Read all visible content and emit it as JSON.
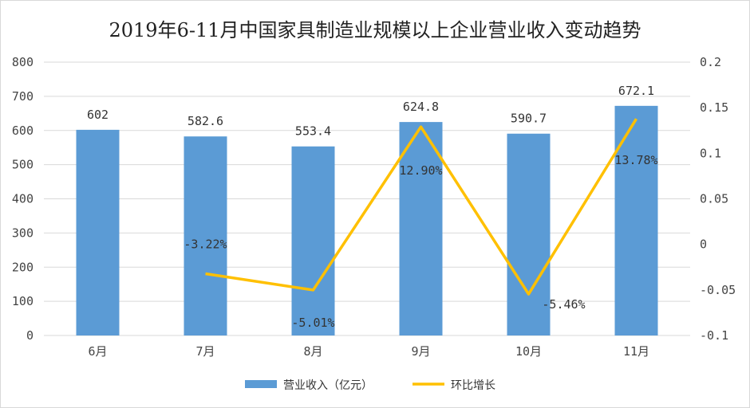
{
  "chart_data": {
    "type": "bar",
    "title": "2019年6-11月中国家具制造业规模以上企业营业收入变动趋势",
    "categories": [
      "6月",
      "7月",
      "8月",
      "9月",
      "10月",
      "11月"
    ],
    "series": [
      {
        "name": "营业收入（亿元）",
        "type": "bar",
        "axis": "left",
        "values": [
          602,
          582.6,
          553.4,
          624.8,
          590.7,
          672.1
        ],
        "labels": [
          "602",
          "582.6",
          "553.4",
          "624.8",
          "590.7",
          "672.1"
        ],
        "color": "#5b9bd5"
      },
      {
        "name": "环比增长",
        "type": "line",
        "axis": "right",
        "values": [
          null,
          -0.0322,
          -0.0501,
          0.129,
          -0.0546,
          0.1378
        ],
        "labels": [
          "",
          "-3.22%",
          "-5.01%",
          "12.90%",
          "-5.46%",
          "13.78%"
        ],
        "color": "#ffc000"
      }
    ],
    "y_left": {
      "min": 0,
      "max": 800,
      "ticks": [
        "0",
        "100",
        "200",
        "300",
        "400",
        "500",
        "600",
        "700",
        "800"
      ]
    },
    "y_right": {
      "min": -0.1,
      "max": 0.2,
      "ticks": [
        "-0.1",
        "-0.05",
        "0",
        "0.05",
        "0.1",
        "0.15",
        "0.2"
      ]
    },
    "grid": true,
    "legend": "bottom"
  }
}
